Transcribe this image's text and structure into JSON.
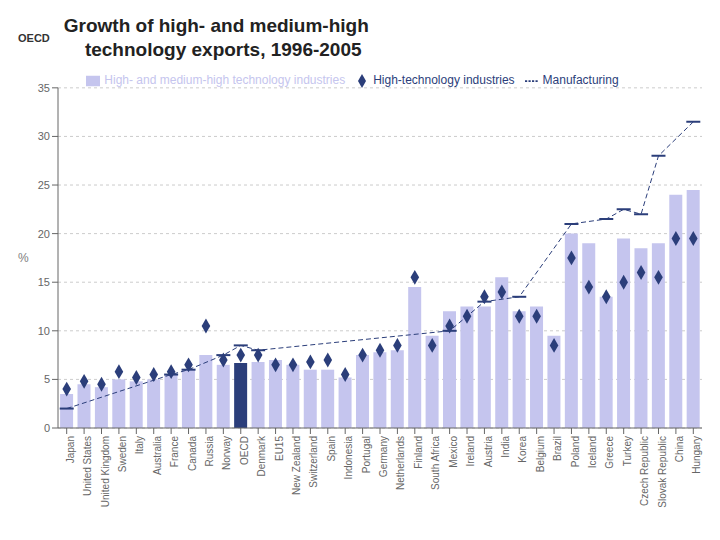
{
  "chart_data": {
    "type": "bar",
    "title": "Growth of high- and medium-high\n    technology exports, 1996-2005",
    "annotations": [
      "OECD"
    ],
    "categories": [
      "Japan",
      "United States",
      "United Kingdom",
      "Sweden",
      "Italy",
      "Australia",
      "France",
      "Canada",
      "Russia",
      "Norway",
      "OECD",
      "Denmark",
      "EU15",
      "New Zealand",
      "Switzerland",
      "Spain",
      "Indonesia",
      "Portugal",
      "Germany",
      "Netherlands",
      "Finland",
      "South Africa",
      "Mexico",
      "Ireland",
      "Austria",
      "India",
      "Korea",
      "Belgium",
      "Brazil",
      "Poland",
      "Iceland",
      "Greece",
      "Turkey",
      "Czech Republic",
      "Slovak Republic",
      "China",
      "Hungary"
    ],
    "y_label": "%",
    "ylim": [
      0,
      35
    ],
    "yticks": [
      0,
      5,
      10,
      15,
      20,
      25,
      30,
      35
    ],
    "grid": true,
    "series": [
      {
        "name": "High- and medium-high technology industries",
        "type": "bar",
        "color": "#C5C5EE",
        "colors": [
          "#C5C5EE",
          "#C5C5EE",
          "#C5C5EE",
          "#C5C5EE",
          "#C5C5EE",
          "#C5C5EE",
          "#C5C5EE",
          "#C5C5EE",
          "#C5C5EE",
          "#C5C5EE",
          "#2B3E7A",
          "#C5C5EE",
          "#C5C5EE",
          "#C5C5EE",
          "#C5C5EE",
          "#C5C5EE",
          "#C5C5EE",
          "#C5C5EE",
          "#C5C5EE",
          "#C5C5EE",
          "#C5C5EE",
          "#C5C5EE",
          "#C5C5EE",
          "#C5C5EE",
          "#C5C5EE",
          "#C5C5EE",
          "#C5C5EE",
          "#C5C5EE",
          "#C5C5EE",
          "#C5C5EE",
          "#C5C5EE",
          "#C5C5EE",
          "#C5C5EE",
          "#C5C5EE",
          "#C5C5EE",
          "#C5C5EE",
          "#C5C5EE"
        ],
        "values": [
          3.5,
          4.5,
          4.2,
          5.0,
          4.8,
          5.0,
          5.5,
          6.0,
          7.5,
          6.5,
          6.7,
          6.8,
          7.0,
          6.5,
          6.0,
          6.0,
          5.2,
          7.5,
          7.8,
          8.0,
          14.5,
          9.5,
          12.0,
          12.5,
          12.5,
          15.5,
          12.0,
          12.5,
          9.5,
          20.0,
          19.0,
          13.5,
          19.5,
          18.5,
          19.0,
          24.0,
          24.5
        ]
      },
      {
        "name": "High-technology industries",
        "type": "scatter",
        "marker": "diamond",
        "color": "#2B3E7A",
        "values": [
          4.0,
          4.8,
          4.5,
          5.8,
          5.2,
          5.5,
          5.8,
          6.5,
          10.5,
          7.0,
          7.5,
          7.5,
          6.5,
          6.5,
          6.8,
          7.0,
          5.5,
          7.5,
          8.0,
          8.5,
          15.5,
          8.5,
          10.5,
          11.5,
          13.5,
          14.0,
          11.5,
          11.5,
          8.5,
          17.5,
          14.5,
          13.5,
          15.0,
          16.0,
          15.5,
          19.5,
          19.5
        ]
      },
      {
        "name": "Manufacturing",
        "type": "line",
        "marker": "dash",
        "line_style": "dashed",
        "color": "#2B3E7A",
        "values": [
          2.0,
          null,
          null,
          null,
          null,
          null,
          5.5,
          6.0,
          null,
          7.5,
          8.5,
          8.0,
          null,
          null,
          null,
          null,
          null,
          null,
          null,
          null,
          null,
          null,
          10.0,
          null,
          13.0,
          null,
          13.5,
          null,
          null,
          21.0,
          null,
          21.5,
          22.5,
          22.0,
          28.0,
          null,
          31.5
        ]
      }
    ]
  }
}
